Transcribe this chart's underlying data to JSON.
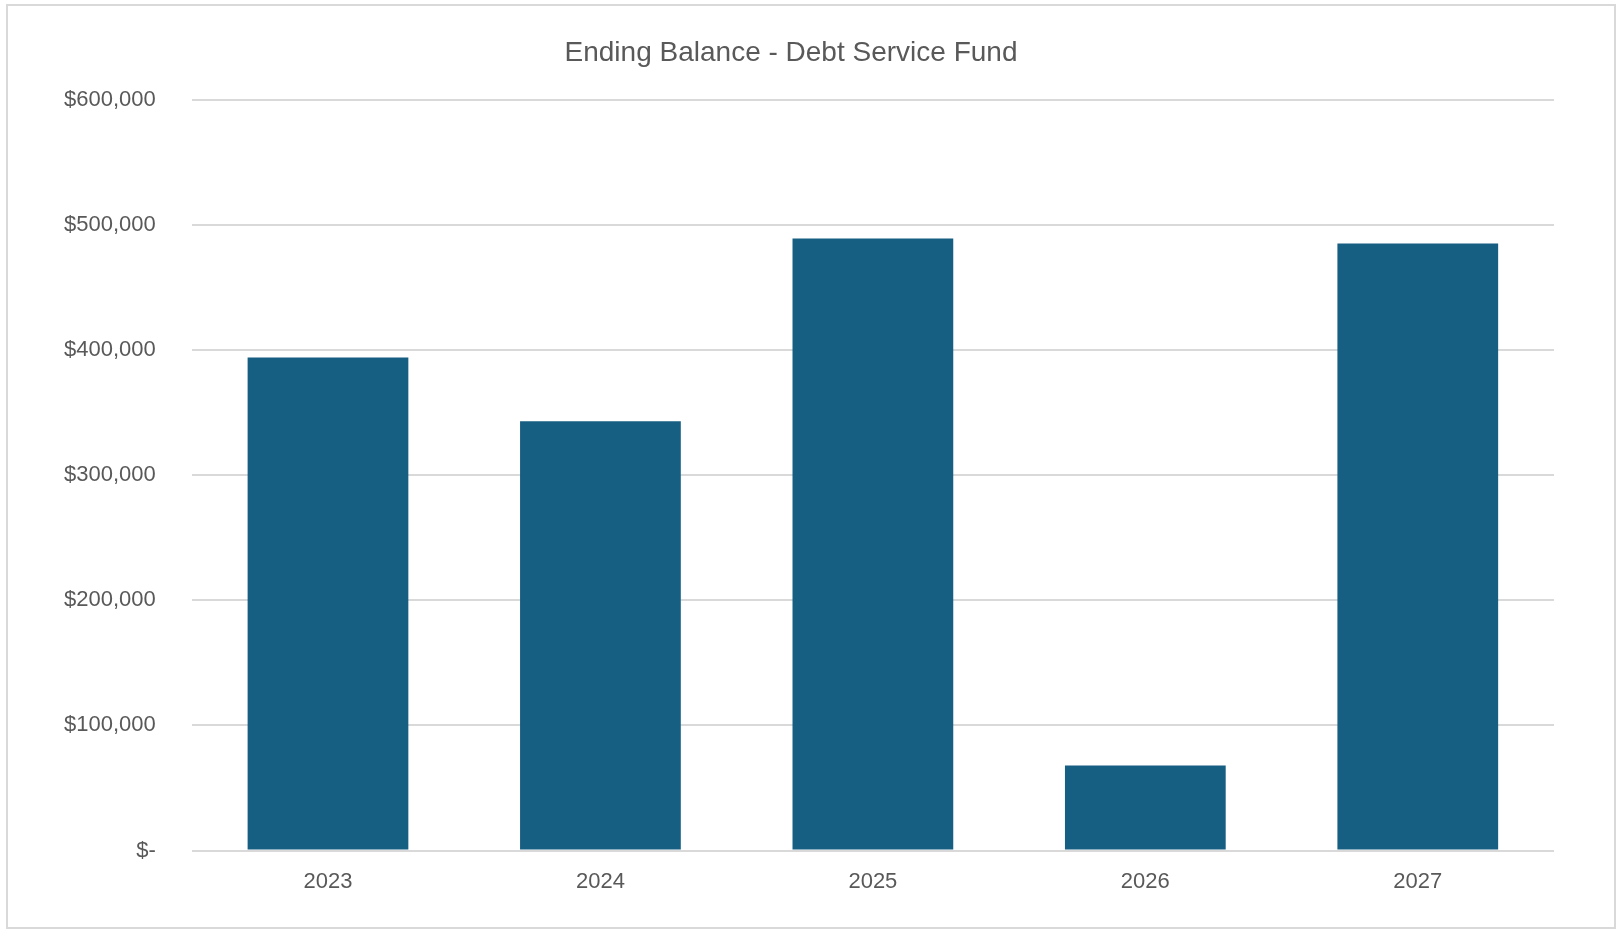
{
  "chart_data": {
    "type": "bar",
    "title": "Ending Balance - Debt Service Fund",
    "categories": [
      "2023",
      "2024",
      "2025",
      "2026",
      "2027"
    ],
    "values": [
      394000,
      343000,
      489000,
      68000,
      485000
    ],
    "color": "#175f82",
    "ylim": [
      0,
      600000
    ],
    "yticks": [
      {
        "value": 0,
        "label": "$-"
      },
      {
        "value": 100000,
        "label": "$100,000"
      },
      {
        "value": 200000,
        "label": "$200,000"
      },
      {
        "value": 300000,
        "label": "$300,000"
      },
      {
        "value": 400000,
        "label": "$400,000"
      },
      {
        "value": 500000,
        "label": "$500,000"
      },
      {
        "value": 600000,
        "label": "$600,000"
      }
    ],
    "grid": "y",
    "legend": false
  }
}
